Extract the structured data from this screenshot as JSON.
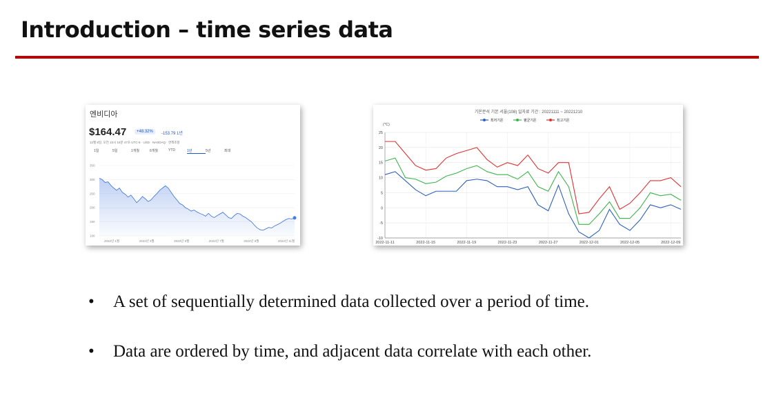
{
  "slide": {
    "title": "Introduction – time series data",
    "accent_color": "#c00000",
    "bullets": [
      "A set of sequentially determined data collected over a period of time.",
      "Data are ordered by time, and adjacent data correlate with each other."
    ]
  },
  "stock_widget": {
    "name": "엔비디아",
    "price": "$164.47",
    "percent_change": "+48.32%",
    "change": "-153.79 1년",
    "meta": "12월 8일, 오전 10시 16분 47초 UTC-5 · USD · NASDAQ · 면책조항",
    "range_tabs": [
      "1일",
      "5일",
      "1개월",
      "6개월",
      "YTD",
      "1년",
      "5년",
      "최대"
    ],
    "active_tab": "1년"
  },
  "chart_data": [
    {
      "type": "area",
      "ylim": [
        100,
        350
      ],
      "y_ticks": [
        "350",
        "300",
        "250",
        "200",
        "150",
        "100"
      ],
      "x_ticks": [
        "2022년 1월",
        "2022년 3월",
        "2022년 5월",
        "2022년 7월",
        "2022년 9월",
        "2022년 11월"
      ],
      "color": "#4a7be0",
      "series": [
        {
          "values": [
            305,
            300,
            290,
            292,
            280,
            270,
            262,
            270,
            255,
            248,
            238,
            245,
            232,
            218,
            228,
            240,
            232,
            222,
            228,
            240,
            250,
            262,
            270,
            278,
            270,
            255,
            240,
            228,
            215,
            210,
            200,
            195,
            188,
            192,
            185,
            180,
            176,
            170,
            180,
            170,
            165,
            172,
            178,
            184,
            175,
            165,
            162,
            172,
            180,
            178,
            170,
            165,
            157,
            150,
            138,
            128,
            122,
            120,
            125,
            130,
            128,
            135,
            140,
            145,
            152,
            158,
            162,
            160,
            164
          ]
        }
      ]
    },
    {
      "type": "line",
      "title": "기온분석 기본 서울(108) 일자료 기간 : 20221111 ~ 20221210",
      "ylabel": "(℃)",
      "ylim": [
        -10,
        25
      ],
      "y_ticks": [
        25,
        20,
        15,
        10,
        5,
        0,
        -5,
        -10
      ],
      "x_ticks": [
        "2022-11-11",
        "2022-11-15",
        "2022-11-19",
        "2022-11-23",
        "2022-11-27",
        "2022-12-01",
        "2022-12-05",
        "2022-12-09"
      ],
      "x": [
        "2022-11-11",
        "2022-11-12",
        "2022-11-13",
        "2022-11-14",
        "2022-11-15",
        "2022-11-16",
        "2022-11-17",
        "2022-11-18",
        "2022-11-19",
        "2022-11-20",
        "2022-11-21",
        "2022-11-22",
        "2022-11-23",
        "2022-11-24",
        "2022-11-25",
        "2022-11-26",
        "2022-11-27",
        "2022-11-28",
        "2022-11-29",
        "2022-11-30",
        "2022-12-01",
        "2022-12-02",
        "2022-12-03",
        "2022-12-04",
        "2022-12-05",
        "2022-12-06",
        "2022-12-07",
        "2022-12-08",
        "2022-12-09",
        "2022-12-10"
      ],
      "legend_position": "top",
      "series": [
        {
          "name": "최저기온",
          "color": "#2c5fc0",
          "values": [
            11,
            12,
            9,
            6,
            4,
            5.5,
            5.5,
            5.5,
            9,
            9.5,
            9,
            7,
            7,
            6,
            7,
            1,
            -1,
            7.5,
            -2,
            -8,
            -10,
            -7.5,
            -0.5,
            -5.5,
            -7.5,
            -4,
            1,
            0,
            1,
            -0.5
          ]
        },
        {
          "name": "평균기온",
          "color": "#3cb54a",
          "values": [
            15.5,
            16.5,
            10,
            9.5,
            8,
            8.5,
            10.5,
            11.5,
            13,
            14,
            12,
            11,
            11,
            9.5,
            12,
            7,
            5.5,
            12,
            7,
            -5.5,
            -5.5,
            -2,
            2,
            -3.5,
            -3.5,
            0,
            5,
            4,
            4.5,
            2.5
          ]
        },
        {
          "name": "최고기온",
          "color": "#e03030",
          "values": [
            22,
            22,
            18,
            14,
            12.5,
            13,
            16.5,
            18,
            19,
            20,
            16,
            13.5,
            15,
            14,
            17.5,
            13,
            11.5,
            15,
            15,
            -2,
            -1.5,
            3,
            7,
            -0.5,
            1.5,
            5,
            9,
            9,
            10,
            7
          ]
        }
      ]
    }
  ]
}
